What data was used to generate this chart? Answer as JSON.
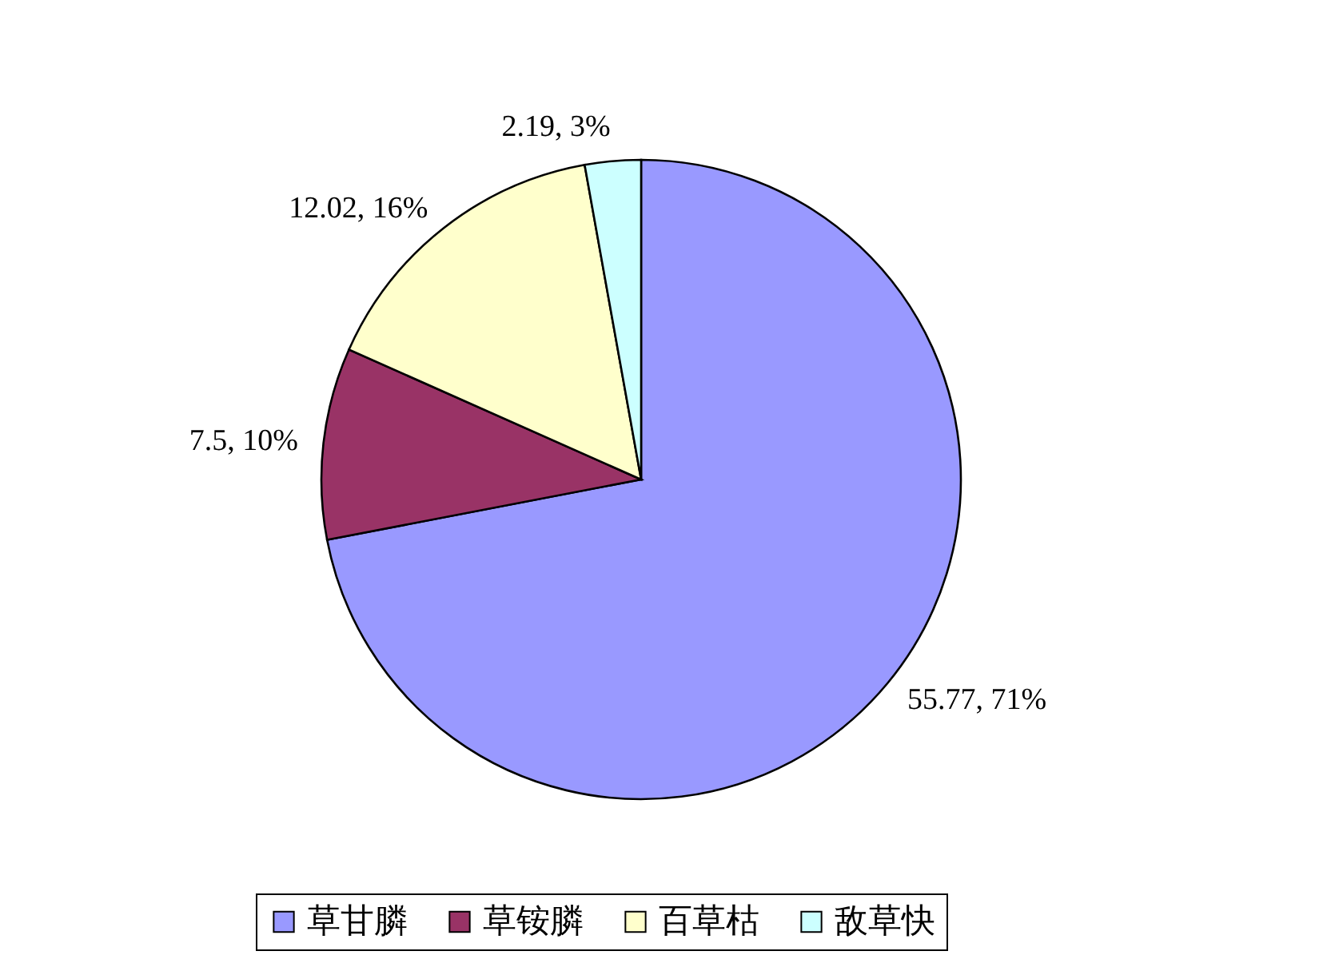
{
  "chart_data": {
    "type": "pie",
    "categories": [
      "草甘膦",
      "草铵膦",
      "百草枯",
      "敌草快"
    ],
    "values": [
      55.77,
      7.5,
      12.02,
      2.19
    ],
    "colors": [
      "#9999ff",
      "#993366",
      "#ffffcc",
      "#ccffff"
    ],
    "value_labels": [
      "55.77, 71%",
      "7.5, 10%",
      "12.02, 16%",
      "2.19, 3%"
    ],
    "legend": "bottom"
  }
}
